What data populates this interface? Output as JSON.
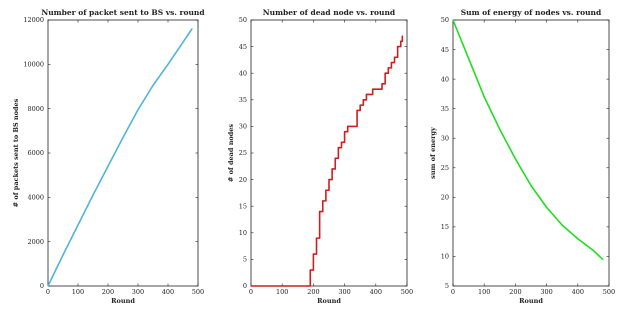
{
  "chart_data": [
    {
      "type": "line",
      "title": "Number of packet sent to BS vs. round",
      "xlabel": "Round",
      "ylabel": "# of packets sent to BS nodes",
      "xlim": [
        0,
        500
      ],
      "ylim": [
        0,
        12000
      ],
      "xticks": [
        0,
        100,
        200,
        300,
        400,
        500
      ],
      "yticks": [
        0,
        2000,
        4000,
        6000,
        8000,
        10000,
        12000
      ],
      "color": "#4fb6d8",
      "step": false,
      "grid": false,
      "x": [
        0,
        50,
        100,
        150,
        200,
        250,
        300,
        350,
        400,
        450,
        480
      ],
      "y": [
        0,
        1400,
        2750,
        4100,
        5400,
        6700,
        7950,
        9050,
        10000,
        11000,
        11600
      ]
    },
    {
      "type": "line",
      "title": "Number of dead node vs. round",
      "xlabel": "Round",
      "ylabel": "# of dead nodes",
      "xlim": [
        0,
        500
      ],
      "ylim": [
        0,
        50
      ],
      "xticks": [
        0,
        100,
        200,
        300,
        400,
        500
      ],
      "yticks": [
        0,
        5,
        10,
        15,
        20,
        25,
        30,
        35,
        40,
        45,
        50
      ],
      "color": "#cc1f1f",
      "step": true,
      "grid": false,
      "x": [
        0,
        180,
        190,
        200,
        210,
        220,
        230,
        240,
        250,
        260,
        270,
        280,
        290,
        300,
        310,
        320,
        330,
        340,
        350,
        360,
        370,
        380,
        390,
        400,
        410,
        420,
        430,
        440,
        450,
        460,
        470,
        480,
        485
      ],
      "y": [
        0,
        0,
        3,
        6,
        9,
        14,
        16,
        18,
        20,
        22,
        24,
        26,
        27,
        29,
        30,
        30,
        30,
        33,
        34,
        35,
        36,
        36,
        37,
        37,
        37,
        38,
        40,
        41,
        42,
        43,
        45,
        46,
        47
      ]
    },
    {
      "type": "line",
      "title": "Sum of energy of nodes vs. round",
      "xlabel": "Round",
      "ylabel": "sum of energy",
      "xlim": [
        0,
        500
      ],
      "ylim": [
        5,
        50
      ],
      "xticks": [
        0,
        100,
        200,
        300,
        400,
        500
      ],
      "yticks": [
        5,
        10,
        15,
        20,
        25,
        30,
        35,
        40,
        45,
        50
      ],
      "color": "#22dd22",
      "step": false,
      "grid": false,
      "x": [
        0,
        50,
        100,
        150,
        200,
        250,
        300,
        350,
        400,
        450,
        480
      ],
      "y": [
        50,
        43.5,
        37,
        31.5,
        26.5,
        22,
        18.3,
        15.3,
        13,
        11,
        9.5
      ]
    }
  ]
}
